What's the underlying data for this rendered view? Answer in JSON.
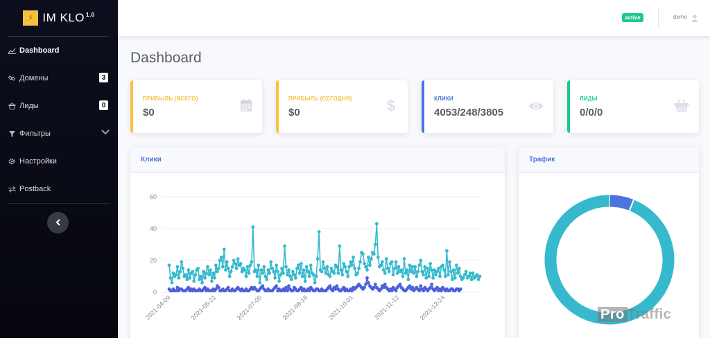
{
  "brand": {
    "name": "IM KLO",
    "version": "1.0",
    "logo_icon": "bolt-icon"
  },
  "sidebar": {
    "items": [
      {
        "label": "Dashboard",
        "icon": "chart-line-icon"
      },
      {
        "label": "Домены",
        "icon": "link-icon",
        "badge": "3"
      },
      {
        "label": "Лиды",
        "icon": "basket-icon",
        "badge": "0"
      },
      {
        "label": "Фильтры",
        "icon": "filter-icon"
      },
      {
        "label": "Настройки",
        "icon": "cog-icon"
      },
      {
        "label": "Postback",
        "icon": "exchange-icon"
      }
    ]
  },
  "topbar": {
    "status": "active",
    "user": "demo"
  },
  "page": {
    "title": "Dashboard"
  },
  "stats": [
    {
      "label": "ПРИБЫЛЬ (ВСЕГО)",
      "value": "$0",
      "accent": "#f6c23e",
      "icon": "calendar-icon"
    },
    {
      "label": "ПРИБЫЛЬ (СЕГОДНЯ)",
      "value": "$0",
      "accent": "#f6c23e",
      "icon": "dollar-icon"
    },
    {
      "label": "КЛИКИ",
      "value": "4053/248/3805",
      "accent": "#4e73df",
      "icon": "eye-icon"
    },
    {
      "label": "ЛИДЫ",
      "value": "0/0/0",
      "accent": "#1cc88a",
      "icon": "basket-icon"
    }
  ],
  "panels": {
    "clicks": "Клики",
    "traffic": "Трафик"
  },
  "watermark": {
    "pro": "Pro",
    "rest": "Traffic"
  },
  "colors": {
    "primary": "#4e73df",
    "warning": "#f6c23e",
    "success": "#1cc88a",
    "teal": "#36b9cc",
    "blue": "#4e60d8"
  },
  "chart_data": [
    {
      "type": "line",
      "title": "Клики",
      "y_ticks": [
        0,
        20,
        40,
        60
      ],
      "ylim": [
        0,
        60
      ],
      "x_tick_labels": [
        "2021-04-09",
        "2021-05-21",
        "2021-07-05",
        "2021-08-16",
        "2021-10-01",
        "2021-11-12",
        "2021-12-24"
      ],
      "series": [
        {
          "color": "#36b9cc",
          "values": [
            17,
            9,
            6,
            12,
            10,
            11,
            16,
            9,
            13,
            19,
            15,
            10,
            11,
            8,
            14,
            9,
            12,
            13,
            7,
            11,
            14,
            15,
            8,
            10,
            6,
            13,
            9,
            12,
            16,
            11,
            14,
            7,
            12,
            9,
            17,
            13,
            15,
            20,
            22,
            16,
            27,
            14,
            19,
            15,
            10,
            13,
            16,
            20,
            18,
            15,
            21,
            17,
            18,
            13,
            15,
            14,
            10,
            16,
            12,
            17,
            19,
            41,
            13,
            14,
            10,
            17,
            6,
            14,
            12,
            16,
            10,
            8,
            14,
            12,
            19,
            15,
            13,
            9,
            17,
            13,
            7,
            11,
            15,
            12,
            29,
            16,
            11,
            14,
            10,
            8,
            13,
            11,
            9,
            15,
            17,
            12,
            18,
            10,
            14,
            7,
            16,
            13,
            10,
            17,
            12,
            11,
            6,
            10,
            21,
            38,
            14,
            13,
            19,
            15,
            12,
            16,
            11,
            10,
            15,
            13,
            12,
            17,
            16,
            12,
            29,
            14,
            11,
            18,
            16,
            13,
            10,
            16,
            19,
            17,
            22,
            15,
            11,
            12,
            15,
            19,
            25,
            24,
            18,
            16,
            14,
            22,
            17,
            21,
            25,
            24,
            30,
            43,
            22,
            16,
            17,
            19,
            14,
            12,
            21,
            15,
            13,
            18,
            19,
            11,
            15,
            19,
            12,
            16,
            13,
            14,
            10,
            21,
            12,
            14,
            8,
            17,
            13,
            16,
            12,
            16,
            10,
            13,
            17,
            20,
            13,
            11,
            16,
            9,
            15,
            10,
            18,
            14,
            9,
            14,
            11,
            13,
            15,
            10,
            16,
            17,
            14,
            10,
            26,
            11,
            19,
            13,
            8,
            14,
            9,
            17,
            12,
            15,
            10,
            8,
            9,
            11,
            13,
            9,
            10,
            12,
            8,
            12,
            9,
            10,
            11,
            8,
            10
          ]
        },
        {
          "color": "#4e60d8",
          "values": [
            2,
            1,
            1,
            2,
            1,
            1,
            3,
            1,
            2,
            2,
            1,
            1,
            1,
            2,
            3,
            1,
            2,
            1,
            2,
            1,
            1,
            1,
            2,
            1,
            1,
            2,
            3,
            1,
            2,
            1,
            1,
            1,
            2,
            1,
            2,
            4,
            3,
            1,
            1,
            2,
            1,
            1,
            2,
            3,
            1,
            1,
            2,
            1,
            1,
            2,
            3,
            2,
            1,
            2,
            1,
            1,
            2,
            1,
            1,
            2,
            3,
            2,
            3,
            2,
            1,
            1,
            2,
            3,
            4,
            2,
            1,
            1,
            2,
            1,
            1,
            1,
            2,
            3,
            4,
            1,
            2,
            1,
            1,
            2,
            1,
            3,
            1,
            4,
            2,
            1,
            1,
            3,
            2,
            1,
            1,
            2,
            3,
            1,
            2,
            1,
            1,
            2,
            1,
            3,
            2,
            1,
            1,
            2,
            2,
            1,
            1,
            2,
            1,
            1,
            1,
            2,
            3,
            4,
            2,
            1,
            3,
            2,
            4,
            2,
            1,
            1,
            2,
            3,
            1,
            2,
            1,
            1,
            2,
            1,
            3,
            2,
            3,
            4,
            5,
            4,
            3,
            2,
            3,
            5,
            9,
            6,
            4,
            3,
            2,
            3,
            5,
            3,
            2,
            1,
            2,
            4,
            3,
            5,
            3,
            2,
            1,
            2,
            1,
            3,
            2,
            1,
            3,
            4,
            5,
            3,
            2,
            1,
            1,
            2,
            3,
            4,
            2,
            3,
            1,
            2,
            3,
            2,
            1,
            4,
            2,
            1,
            3,
            2,
            1,
            2,
            3,
            5,
            2,
            1,
            2,
            3,
            1,
            2,
            1,
            3,
            2,
            1,
            2,
            1,
            1,
            2,
            2,
            1,
            1,
            2,
            2,
            1,
            2
          ]
        }
      ]
    },
    {
      "type": "pie",
      "title": "Трафик",
      "slices": [
        {
          "value": 3805,
          "color": "#36b9cc"
        },
        {
          "value": 248,
          "color": "#4e73df"
        }
      ]
    }
  ]
}
